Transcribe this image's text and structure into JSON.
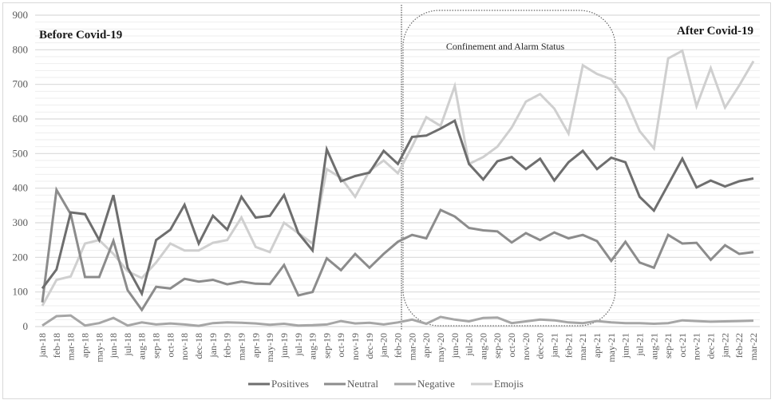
{
  "chart_data": {
    "type": "line",
    "title": "",
    "xlabel": "",
    "ylabel": "",
    "ylim": [
      0,
      900
    ],
    "yticks": [
      0,
      100,
      200,
      300,
      400,
      500,
      600,
      700,
      800,
      900
    ],
    "grid": true,
    "legend_position": "bottom",
    "categories": [
      "jan-18",
      "feb-18",
      "mar-18",
      "apr-18",
      "may-18",
      "jun-18",
      "jul-18",
      "aug-18",
      "sep-18",
      "oct-18",
      "nov-18",
      "dec-18",
      "jan-19",
      "feb-19",
      "mar-19",
      "apr-19",
      "may-19",
      "jun-19",
      "jul-19",
      "aug-19",
      "sep-19",
      "oct-19",
      "nov-19",
      "dec-19",
      "jan-20",
      "feb-20",
      "mar-20",
      "apr-20",
      "may-20",
      "jun-20",
      "jul-20",
      "aug-20",
      "sep-20",
      "oct-20",
      "nov-20",
      "dec-20",
      "jan-21",
      "feb-21",
      "mar-21",
      "apr-21",
      "may-21",
      "jun-21",
      "jul-21",
      "aug-21",
      "sep-21",
      "oct-21",
      "nov-21",
      "dec-21",
      "jan-22",
      "feb-22",
      "mar-22"
    ],
    "series": [
      {
        "name": "Positives",
        "color": "#6e6e6e",
        "values": [
          110,
          165,
          330,
          325,
          250,
          380,
          170,
          95,
          250,
          280,
          352,
          240,
          320,
          280,
          375,
          315,
          320,
          380,
          270,
          220,
          512,
          420,
          435,
          445,
          508,
          470,
          548,
          552,
          572,
          595,
          470,
          425,
          478,
          490,
          455,
          485,
          422,
          475,
          508,
          455,
          488,
          475,
          375,
          335,
          410,
          485,
          402,
          422,
          405,
          420,
          428
        ]
      },
      {
        "name": "Neutral",
        "color": "#8c8c8c",
        "values": [
          70,
          395,
          325,
          143,
          143,
          248,
          105,
          48,
          115,
          110,
          138,
          130,
          135,
          122,
          130,
          124,
          123,
          178,
          90,
          100,
          197,
          163,
          210,
          170,
          210,
          245,
          265,
          255,
          337,
          318,
          285,
          278,
          275,
          243,
          270,
          250,
          272,
          255,
          265,
          247,
          190,
          245,
          185,
          170,
          265,
          240,
          242,
          193,
          235,
          210,
          215
        ]
      },
      {
        "name": "Negative",
        "color": "#a6a6a6",
        "values": [
          3,
          30,
          32,
          3,
          10,
          25,
          3,
          12,
          6,
          9,
          6,
          2,
          10,
          12,
          11,
          9,
          5,
          8,
          3,
          4,
          6,
          16,
          9,
          11,
          6,
          12,
          20,
          8,
          28,
          20,
          15,
          25,
          26,
          10,
          15,
          20,
          18,
          12,
          10,
          16,
          12,
          10,
          10,
          8,
          10,
          18,
          16,
          14,
          15,
          16,
          17
        ]
      },
      {
        "name": "Emojis",
        "color": "#cfcfcf",
        "values": [
          60,
          135,
          145,
          240,
          250,
          210,
          160,
          140,
          185,
          240,
          220,
          220,
          242,
          250,
          315,
          230,
          215,
          300,
          270,
          240,
          455,
          430,
          375,
          450,
          480,
          443,
          520,
          605,
          580,
          695,
          470,
          490,
          520,
          575,
          650,
          672,
          630,
          558,
          755,
          730,
          715,
          660,
          565,
          515,
          775,
          797,
          637,
          747,
          633,
          697,
          767
        ]
      }
    ],
    "annotations": [
      {
        "text": "Before Covid-19",
        "position": "top-left"
      },
      {
        "text": "After Covid-19",
        "position": "top-right"
      },
      {
        "text": "Confinement and Alarm Status",
        "region": [
          "mar-20",
          "may-21"
        ],
        "style": "dotted rounded box"
      }
    ],
    "vertical_marker": {
      "between": [
        "feb-20",
        "mar-20"
      ],
      "style": "dotted"
    }
  },
  "labels": {
    "before": "Before Covid-19",
    "after": "After Covid-19",
    "confinement": "Confinement and Alarm Status"
  }
}
